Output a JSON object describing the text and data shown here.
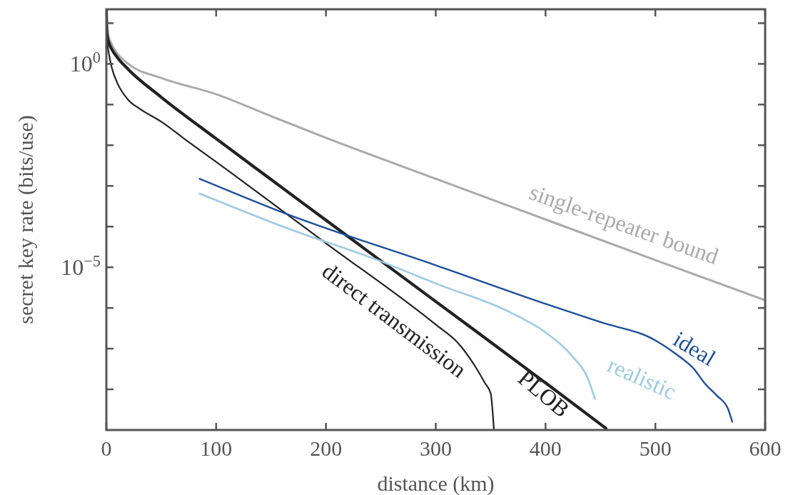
{
  "chart_data": {
    "type": "line",
    "xlabel": "distance (km)",
    "ylabel": "secret key rate (bits/use)",
    "log": "y",
    "grid": false,
    "marker": "none",
    "line_style": "solid",
    "xlim": [
      0,
      600
    ],
    "xticks": [
      0,
      100,
      200,
      300,
      400,
      500,
      600
    ],
    "ylim": [
      1e-09,
      22
    ],
    "yticks": [
      {
        "value": 10,
        "label": null
      },
      {
        "value": 1,
        "label": "10$^{0}$"
      },
      {
        "value": 0.1,
        "label": null
      },
      {
        "value": 0.01,
        "label": null
      },
      {
        "value": 0.001,
        "label": null
      },
      {
        "value": 0.0001,
        "label": null
      },
      {
        "value": 1e-05,
        "label": "10$^{−5}$"
      },
      {
        "value": 1e-06,
        "label": null
      },
      {
        "value": 1e-07,
        "label": null
      },
      {
        "value": 1e-08,
        "label": null
      }
    ],
    "series": [
      {
        "name": "single-repeater bound",
        "color": "#aaaaaa",
        "x": [
          0,
          2,
          5,
          10,
          20,
          50,
          100,
          150,
          202,
          300,
          400,
          500,
          600
        ],
        "values": [
          22,
          5,
          3,
          1.8,
          1,
          0.45,
          0.18,
          0.052,
          0.0145,
          0.0015,
          0.00015,
          1.5e-05,
          1.55e-06
        ]
      },
      {
        "name": "direct transmission",
        "color": "#222222",
        "x": [
          0,
          1,
          2,
          5,
          10,
          20,
          30,
          50,
          75,
          100,
          200,
          300,
          320,
          335,
          345,
          350,
          353
        ],
        "values": [
          22,
          3,
          2,
          0.8,
          0.34,
          0.13,
          0.08,
          0.038,
          0.012,
          0.0039,
          3.9e-05,
          3.9e-07,
          1.4e-07,
          4e-08,
          1.4e-08,
          8e-09,
          1e-09
        ]
      },
      {
        "name": "PLOB",
        "color": "#222222",
        "x": [
          0,
          0.05,
          0.5,
          2,
          5,
          10,
          20,
          50,
          100,
          150,
          200,
          300,
          400,
          455
        ],
        "values": [
          22,
          8.77,
          5.45,
          3.51,
          2.28,
          1.44,
          0.732,
          0.152,
          0.0145,
          0.00144,
          0.000144,
          1.44e-06,
          1.44e-08,
          1.1e-09
        ]
      },
      {
        "name": "ideal",
        "color": "#1f4e9a",
        "x": [
          85,
          163,
          300,
          400,
          450,
          500,
          520,
          535,
          545,
          556,
          566,
          570
        ],
        "values": [
          0.0015,
          0.00021,
          1.12e-05,
          1.26e-06,
          4.5e-07,
          1.6e-07,
          7e-08,
          3.2e-08,
          1.4e-08,
          7e-09,
          3.4e-09,
          1.6e-09
        ]
      },
      {
        "name": "realistic",
        "color": "#9ecae1",
        "x": [
          85,
          163,
          250,
          300,
          367,
          400,
          425,
          438,
          445
        ],
        "values": [
          0.00065,
          9.5e-05,
          1.4e-05,
          4e-06,
          8e-07,
          2.5e-07,
          6.2e-08,
          2e-08,
          5.9e-09
        ]
      }
    ]
  }
}
